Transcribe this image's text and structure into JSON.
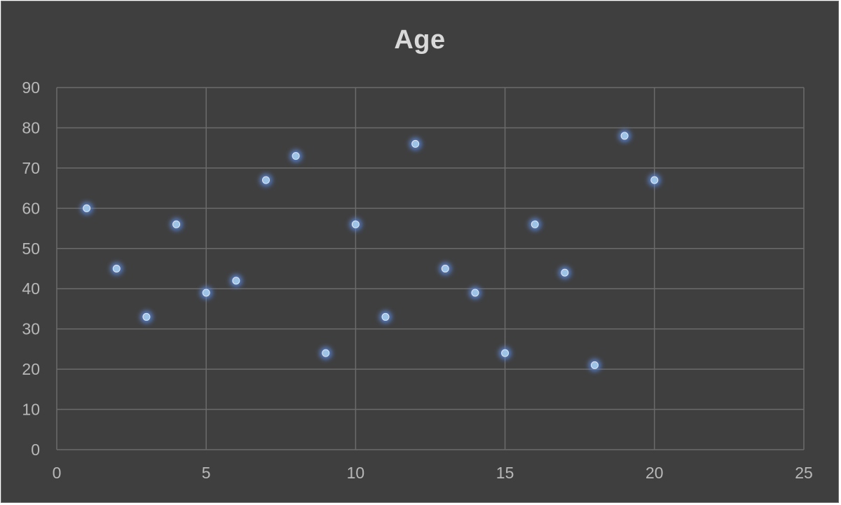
{
  "chart_data": {
    "type": "scatter",
    "title": "Age",
    "xlabel": "",
    "ylabel": "",
    "xlim": [
      0,
      25
    ],
    "ylim": [
      0,
      90
    ],
    "xticks": [
      0,
      5,
      10,
      15,
      20,
      25
    ],
    "yticks": [
      0,
      10,
      20,
      30,
      40,
      50,
      60,
      70,
      80,
      90
    ],
    "grid": true,
    "legend": "none",
    "marker_color": "#9dc3e6",
    "background_color": "#404040",
    "gridline_color": "#6b6b6b",
    "points": [
      {
        "x": 1,
        "y": 60
      },
      {
        "x": 2,
        "y": 45
      },
      {
        "x": 3,
        "y": 33
      },
      {
        "x": 4,
        "y": 56
      },
      {
        "x": 5,
        "y": 39
      },
      {
        "x": 6,
        "y": 42
      },
      {
        "x": 7,
        "y": 67
      },
      {
        "x": 8,
        "y": 73
      },
      {
        "x": 9,
        "y": 24
      },
      {
        "x": 10,
        "y": 56
      },
      {
        "x": 11,
        "y": 33
      },
      {
        "x": 12,
        "y": 76
      },
      {
        "x": 13,
        "y": 45
      },
      {
        "x": 14,
        "y": 39
      },
      {
        "x": 15,
        "y": 24
      },
      {
        "x": 16,
        "y": 56
      },
      {
        "x": 17,
        "y": 44
      },
      {
        "x": 18,
        "y": 21
      },
      {
        "x": 19,
        "y": 78
      },
      {
        "x": 20,
        "y": 67
      }
    ]
  }
}
